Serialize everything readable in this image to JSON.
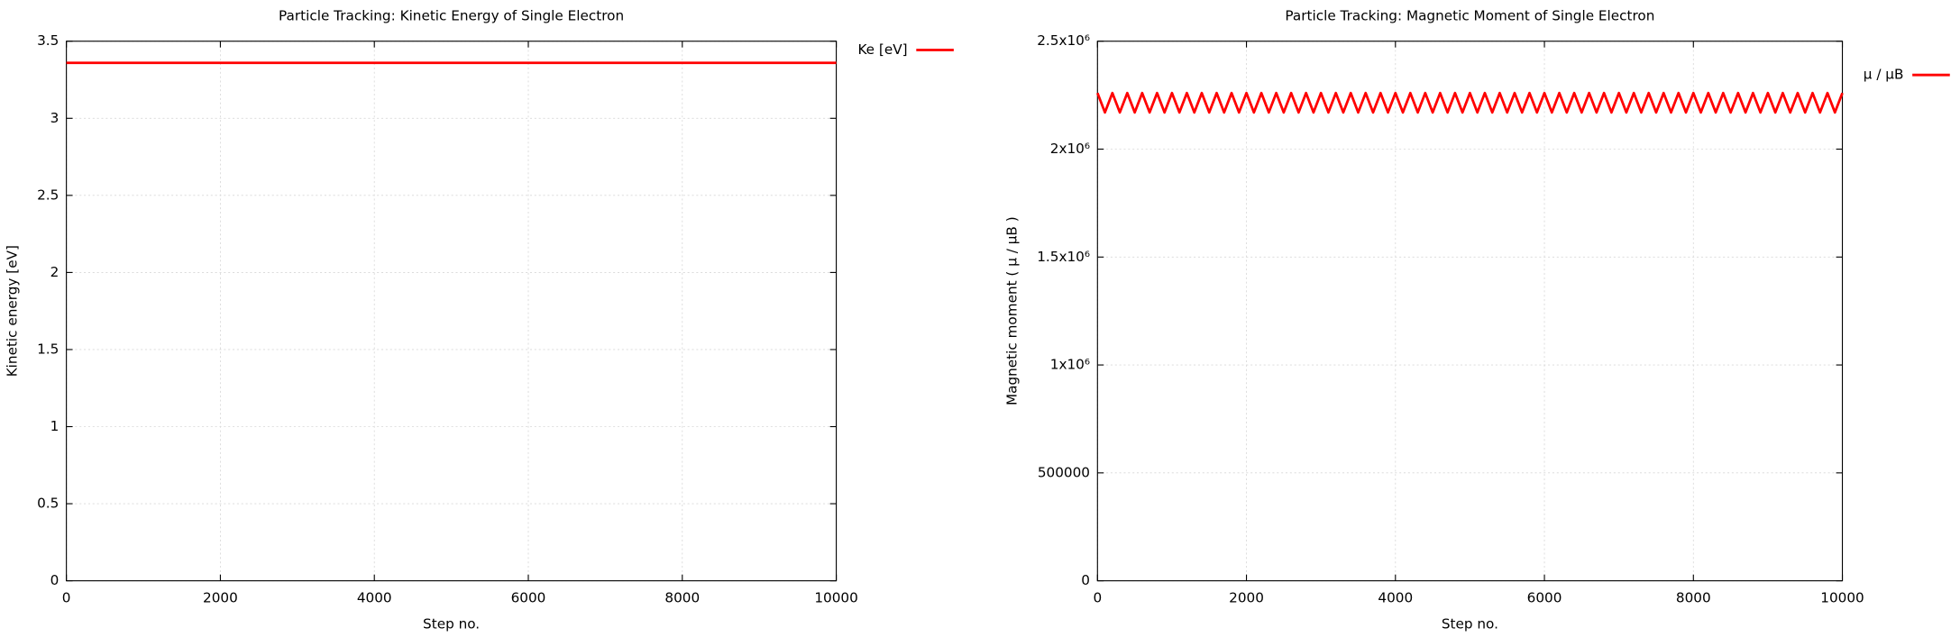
{
  "chart_data": [
    {
      "type": "line",
      "title": "Particle Tracking: Kinetic Energy of Single Electron",
      "x_label": "Step no.",
      "y_label": "Kinetic energy [eV]",
      "x": [
        0,
        1000,
        2000,
        3000,
        4000,
        5000,
        6000,
        7000,
        8000,
        9000,
        10000
      ],
      "series": [
        {
          "name": "Ke [eV]",
          "color": "#ff0000",
          "values": [
            3.36,
            3.36,
            3.36,
            3.36,
            3.36,
            3.36,
            3.36,
            3.36,
            3.36,
            3.36,
            3.36
          ]
        }
      ],
      "xlim": [
        0,
        10000
      ],
      "xticks": [
        0,
        2000,
        4000,
        6000,
        8000,
        10000
      ],
      "ylim": [
        0,
        3.5
      ],
      "yticks": [
        0,
        0.5,
        1,
        1.5,
        2,
        2.5,
        3,
        3.5
      ],
      "grid": true,
      "legend": "outside-right"
    },
    {
      "type": "line",
      "title": "Particle Tracking: Magnetic Moment of Single Electron",
      "x_label": "Step no.",
      "y_label": "Magnetic moment ( μ / μB )",
      "x": [
        0,
        100,
        200,
        300,
        400,
        500,
        600,
        700,
        800,
        900,
        1000,
        1100,
        1200,
        1300,
        1400,
        1500,
        1600,
        1700,
        1800,
        1900,
        2000,
        2100,
        2200,
        2300,
        2400,
        2500,
        2600,
        2700,
        2800,
        2900,
        3000,
        3100,
        3200,
        3300,
        3400,
        3500,
        3600,
        3700,
        3800,
        3900,
        4000,
        4100,
        4200,
        4300,
        4400,
        4500,
        4600,
        4700,
        4800,
        4900,
        5000,
        5100,
        5200,
        5300,
        5400,
        5500,
        5600,
        5700,
        5800,
        5900,
        6000,
        6100,
        6200,
        6300,
        6400,
        6500,
        6600,
        6700,
        6800,
        6900,
        7000,
        7100,
        7200,
        7300,
        7400,
        7500,
        7600,
        7700,
        7800,
        7900,
        8000,
        8100,
        8200,
        8300,
        8400,
        8500,
        8600,
        8700,
        8800,
        8900,
        9000,
        9100,
        9200,
        9300,
        9400,
        9500,
        9600,
        9700,
        9800,
        9900,
        10000
      ],
      "series": [
        {
          "name": "μ / μB",
          "color": "#ff0000",
          "values": [
            2260000,
            2170000,
            2260000,
            2170000,
            2260000,
            2170000,
            2260000,
            2170000,
            2260000,
            2170000,
            2260000,
            2170000,
            2260000,
            2170000,
            2260000,
            2170000,
            2260000,
            2170000,
            2260000,
            2170000,
            2260000,
            2170000,
            2260000,
            2170000,
            2260000,
            2170000,
            2260000,
            2170000,
            2260000,
            2170000,
            2260000,
            2170000,
            2260000,
            2170000,
            2260000,
            2170000,
            2260000,
            2170000,
            2260000,
            2170000,
            2260000,
            2170000,
            2260000,
            2170000,
            2260000,
            2170000,
            2260000,
            2170000,
            2260000,
            2170000,
            2260000,
            2170000,
            2260000,
            2170000,
            2260000,
            2170000,
            2260000,
            2170000,
            2260000,
            2170000,
            2260000,
            2170000,
            2260000,
            2170000,
            2260000,
            2170000,
            2260000,
            2170000,
            2260000,
            2170000,
            2260000,
            2170000,
            2260000,
            2170000,
            2260000,
            2170000,
            2260000,
            2170000,
            2260000,
            2170000,
            2260000,
            2170000,
            2260000,
            2170000,
            2260000,
            2170000,
            2260000,
            2170000,
            2260000,
            2170000,
            2260000,
            2170000,
            2260000,
            2170000,
            2260000,
            2170000,
            2260000,
            2170000,
            2260000,
            2170000,
            2260000
          ]
        }
      ],
      "xlim": [
        0,
        10000
      ],
      "xticks": [
        0,
        2000,
        4000,
        6000,
        8000,
        10000
      ],
      "ylim": [
        0,
        2500000
      ],
      "yticks": [
        0,
        500000,
        {
          "value": 1000000,
          "label": "1x10⁶"
        },
        {
          "value": 1500000,
          "label": "1.5x10⁶"
        },
        {
          "value": 2000000,
          "label": "2x10⁶"
        },
        {
          "value": 2500000,
          "label": "2.5x10⁶"
        }
      ],
      "grid": true,
      "legend": "outside-right"
    }
  ]
}
